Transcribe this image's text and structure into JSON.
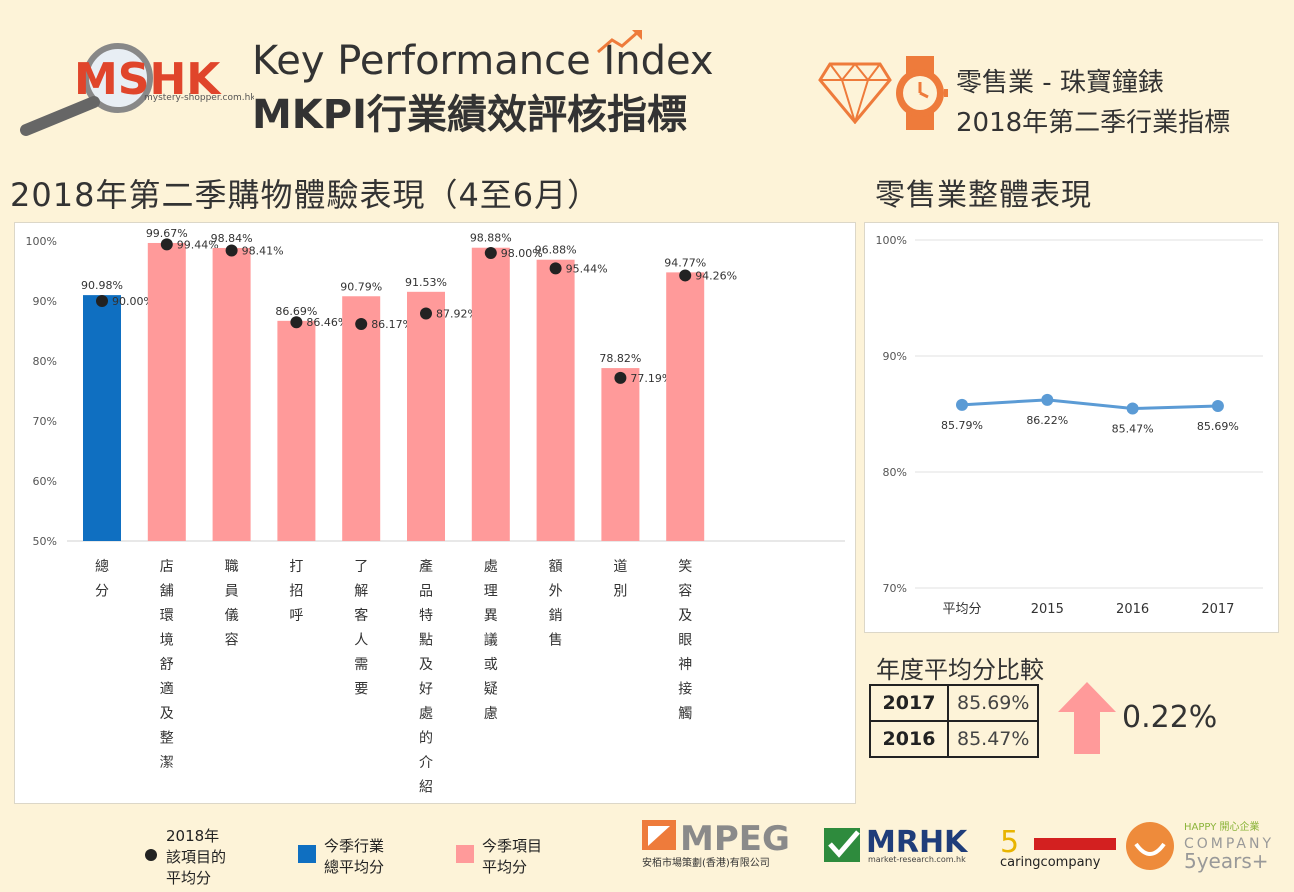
{
  "header": {
    "logo_text": "MSHK",
    "logo_url": "mystery-shopper.com.hk",
    "kpi_en": "Key Performance Index",
    "kpi_zh": "MKPI行業績效評核指標",
    "industry": "零售業 - 珠寶鐘錶",
    "quarter": "2018年第二季行業指標"
  },
  "sections": {
    "main_title": "2018年第二季購物體驗表現（4至6月）",
    "overall_title": "零售業整體表現",
    "yearly_title": "年度平均分比較"
  },
  "comparison": {
    "rows": [
      {
        "year": "2017",
        "value": "85.69%"
      },
      {
        "year": "2016",
        "value": "85.47%"
      }
    ],
    "delta": "0.22%"
  },
  "legend": {
    "dot_label": "2018年該項目的平均分",
    "blue_label": "今季行業總平均分",
    "pink_label": "今季項目平均分"
  },
  "logos": {
    "mpeg": "MPEG",
    "mpeg_sub": "安栢市場策劃(香港)有限公司",
    "mrhk": "MRHK",
    "mrhk_sub": "market-research.com.hk",
    "caring": "caringcompany",
    "happy": "HAPPY 開心企業",
    "happy_company": "COMPANY",
    "happy_years": "5years+"
  },
  "colors": {
    "blue_bar": "#0f6fc1",
    "pink_bar": "#ff9a9a",
    "line": "#5b9bd5",
    "dot": "#222222",
    "accent_orange": "#ee7b3b",
    "arrow_pink": "#ff9a9a"
  },
  "chart_data": [
    {
      "type": "bar",
      "categories": [
        "總分",
        "店舖環境舒適及整潔",
        "職員儀容",
        "打招呼",
        "了解客人需要",
        "產品特點及好處的介紹",
        "處理異議或疑慮",
        "額外銷售",
        "道別",
        "笑容及眼神接觸"
      ],
      "series": [
        {
          "name": "今季項目平均分",
          "values": [
            90.98,
            99.67,
            98.84,
            86.69,
            90.79,
            91.53,
            98.88,
            96.88,
            78.82,
            94.77
          ],
          "labels": [
            "90.98%",
            "99.67%",
            "98.84%",
            "86.69%",
            "90.79%",
            "91.53%",
            "98.88%",
            "96.88%",
            "78.82%",
            "94.77%"
          ]
        },
        {
          "name": "2018年該項目的平均分",
          "values": [
            90.0,
            99.44,
            98.41,
            86.46,
            86.17,
            87.92,
            98.0,
            95.44,
            77.19,
            94.26
          ],
          "labels": [
            "90.00%",
            "99.44%",
            "98.41%",
            "86.46%",
            "86.17%",
            "87.92%",
            "98.00%",
            "95.44%",
            "77.19%",
            "94.26%"
          ]
        }
      ],
      "yticks": [
        "100%",
        "90%",
        "80%",
        "70%",
        "60%",
        "50%"
      ],
      "ylim": [
        50,
        100
      ]
    },
    {
      "type": "line",
      "categories": [
        "平均分",
        "2015",
        "2016",
        "2017"
      ],
      "values": [
        85.79,
        86.22,
        85.47,
        85.69
      ],
      "labels": [
        "85.79%",
        "86.22%",
        "85.47%",
        "85.69%"
      ],
      "yticks": [
        "100%",
        "90%",
        "80%",
        "70%"
      ],
      "ylim": [
        70,
        100
      ]
    }
  ]
}
